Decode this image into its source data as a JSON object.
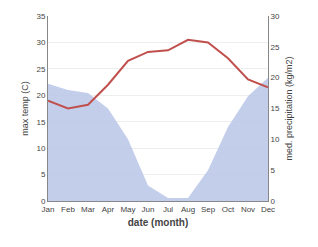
{
  "chart_data": {
    "type": "line",
    "xlabel": "date (month)",
    "ylabel": "max temp (C)",
    "y2label": "med. precipitation (kg/m2)",
    "categories": [
      "Jan",
      "Feb",
      "Mar",
      "Apr",
      "May",
      "Jun",
      "Jul",
      "Aug",
      "Sep",
      "Oct",
      "Nov",
      "Dec"
    ],
    "series": [
      {
        "type": "area",
        "axis": "y2",
        "color": "#b8c6e8",
        "values": [
          19.0,
          18.0,
          17.5,
          15.0,
          10.0,
          2.5,
          0.5,
          0.5,
          5.0,
          12.0,
          17.0,
          20.0
        ]
      },
      {
        "type": "line",
        "color": "#c0504d",
        "values": [
          19.0,
          17.5,
          18.2,
          22.0,
          26.5,
          28.2,
          28.5,
          30.5,
          30.0,
          27.0,
          23.0,
          21.5
        ]
      }
    ],
    "ylim": [
      0,
      35
    ],
    "yticks": [
      0,
      5,
      10,
      15,
      20,
      25,
      30,
      35
    ],
    "y2lim": [
      0,
      30
    ],
    "y2ticks": [
      0,
      5,
      10,
      15,
      20,
      25,
      30
    ],
    "grid": true
  }
}
